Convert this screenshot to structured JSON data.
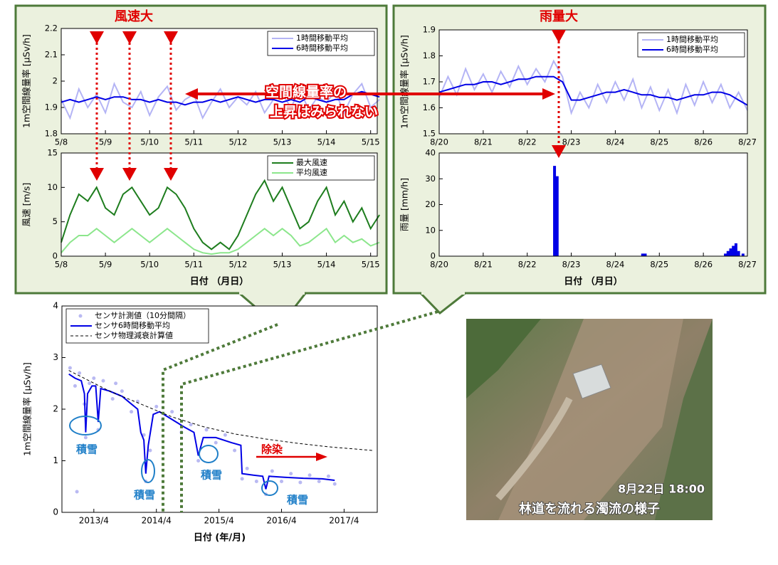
{
  "chart_data": [
    {
      "type": "line",
      "x": [
        0,
        0.2,
        0.4,
        0.6,
        0.8,
        1,
        1.2,
        1.4,
        1.6,
        1.8,
        2,
        2.2,
        2.4,
        2.6,
        2.8,
        3,
        3.2,
        3.4,
        3.6,
        3.8,
        4,
        4.2,
        4.4,
        4.6,
        4.8,
        5,
        5.2,
        5.4,
        5.6,
        5.8,
        6,
        6.2,
        6.4,
        6.6,
        6.8,
        7,
        7.2
      ],
      "series": [
        {
          "name": "1時間移動平均",
          "color": "#b4b4f5",
          "values": [
            1.93,
            1.86,
            1.97,
            1.9,
            1.95,
            1.88,
            1.99,
            1.92,
            1.9,
            1.96,
            1.87,
            1.94,
            1.98,
            1.89,
            1.93,
            1.95,
            1.86,
            1.92,
            1.97,
            1.9,
            1.94,
            1.91,
            1.96,
            1.88,
            1.93,
            1.95,
            1.9,
            1.97,
            1.89,
            1.94,
            1.92,
            1.96,
            1.88,
            1.95,
            1.99,
            1.9,
            1.93
          ]
        },
        {
          "name": "6時間移動平均",
          "color": "#0000e6",
          "values": [
            1.92,
            1.93,
            1.92,
            1.93,
            1.94,
            1.93,
            1.94,
            1.94,
            1.93,
            1.93,
            1.92,
            1.93,
            1.92,
            1.92,
            1.91,
            1.92,
            1.92,
            1.93,
            1.92,
            1.93,
            1.94,
            1.93,
            1.92,
            1.93,
            1.93,
            1.92,
            1.93,
            1.92,
            1.94,
            1.93,
            1.92,
            1.93,
            1.93,
            1.95,
            1.96,
            1.95,
            1.94
          ]
        }
      ],
      "xlim": [
        0,
        7.15
      ],
      "ylim": [
        1.8,
        2.2
      ],
      "yticks": [
        1.8,
        1.9,
        2,
        2.1,
        2.2
      ],
      "xticks": [
        {
          "value": 0,
          "label": "5/8"
        },
        {
          "value": 1,
          "label": "5/9"
        },
        {
          "value": 2,
          "label": "5/10"
        },
        {
          "value": 3,
          "label": "5/11"
        },
        {
          "value": 4,
          "label": "5/12"
        },
        {
          "value": 5,
          "label": "5/13"
        },
        {
          "value": 6,
          "label": "5/14"
        },
        {
          "value": 7,
          "label": "5/15"
        }
      ],
      "ylabel": "1m空間線量率 [μSv/h]",
      "legend": "upper right"
    },
    {
      "type": "line",
      "x": [
        0,
        0.2,
        0.4,
        0.6,
        0.8,
        1,
        1.2,
        1.4,
        1.6,
        1.8,
        2,
        2.2,
        2.4,
        2.6,
        2.8,
        3,
        3.2,
        3.4,
        3.6,
        3.8,
        4,
        4.2,
        4.4,
        4.6,
        4.8,
        5,
        5.2,
        5.4,
        5.6,
        5.8,
        6,
        6.2,
        6.4,
        6.6,
        6.8,
        7,
        7.2
      ],
      "series": [
        {
          "name": "最大風速",
          "color": "#1e7d1e",
          "values": [
            2,
            6,
            9,
            8,
            10,
            7,
            6,
            9,
            10,
            8,
            6,
            7,
            10,
            9,
            7,
            4,
            2,
            1,
            2,
            1,
            3,
            6,
            9,
            11,
            8,
            10,
            7,
            4,
            5,
            8,
            10,
            6,
            8,
            5,
            7,
            4,
            6
          ]
        },
        {
          "name": "平均風速",
          "color": "#8ce68c",
          "values": [
            0.5,
            2,
            3,
            3,
            4,
            3,
            2,
            3,
            4,
            3,
            2,
            3,
            4,
            3,
            2,
            1,
            0.5,
            0.3,
            0.5,
            0.5,
            1,
            2,
            3,
            4,
            3,
            4,
            3,
            1.5,
            2,
            3,
            4,
            2,
            3,
            2,
            2.5,
            1.5,
            2
          ]
        }
      ],
      "xlim": [
        0,
        7.15
      ],
      "ylim": [
        0,
        15
      ],
      "yticks": [
        0,
        5,
        10,
        15
      ],
      "xticks": [
        {
          "value": 0,
          "label": "5/8"
        },
        {
          "value": 1,
          "label": "5/9"
        },
        {
          "value": 2,
          "label": "5/10"
        },
        {
          "value": 3,
          "label": "5/11"
        },
        {
          "value": 4,
          "label": "5/12"
        },
        {
          "value": 5,
          "label": "5/13"
        },
        {
          "value": 6,
          "label": "5/14"
        },
        {
          "value": 7,
          "label": "5/15"
        }
      ],
      "ylabel": "風速 [m/s]",
      "xlabel": "日付 （月日）",
      "legend": "upper right"
    },
    {
      "type": "line",
      "x": [
        0,
        0.2,
        0.4,
        0.6,
        0.8,
        1,
        1.2,
        1.4,
        1.6,
        1.8,
        2,
        2.2,
        2.4,
        2.6,
        2.8,
        3,
        3.2,
        3.4,
        3.6,
        3.8,
        4,
        4.2,
        4.4,
        4.6,
        4.8,
        5,
        5.2,
        5.4,
        5.6,
        5.8,
        6,
        6.2,
        6.4,
        6.6,
        6.8,
        7
      ],
      "series": [
        {
          "name": "1時間移動平均",
          "color": "#b4b4f5",
          "values": [
            1.64,
            1.72,
            1.65,
            1.75,
            1.67,
            1.73,
            1.66,
            1.74,
            1.68,
            1.76,
            1.69,
            1.75,
            1.7,
            1.78,
            1.72,
            1.58,
            1.66,
            1.6,
            1.69,
            1.62,
            1.7,
            1.63,
            1.71,
            1.6,
            1.68,
            1.59,
            1.67,
            1.58,
            1.69,
            1.61,
            1.7,
            1.62,
            1.69,
            1.6,
            1.66,
            1.59
          ]
        },
        {
          "name": "6時間移動平均",
          "color": "#0000e6",
          "values": [
            1.66,
            1.67,
            1.68,
            1.69,
            1.69,
            1.7,
            1.7,
            1.69,
            1.7,
            1.71,
            1.71,
            1.72,
            1.72,
            1.72,
            1.7,
            1.63,
            1.63,
            1.64,
            1.65,
            1.66,
            1.66,
            1.67,
            1.66,
            1.65,
            1.65,
            1.64,
            1.64,
            1.63,
            1.64,
            1.65,
            1.65,
            1.66,
            1.66,
            1.65,
            1.63,
            1.61
          ]
        }
      ],
      "xlim": [
        0,
        7
      ],
      "ylim": [
        1.5,
        1.9
      ],
      "yticks": [
        1.5,
        1.6,
        1.7,
        1.8,
        1.9
      ],
      "xticks": [
        {
          "value": 0,
          "label": "8/20"
        },
        {
          "value": 1,
          "label": "8/21"
        },
        {
          "value": 2,
          "label": "8/22"
        },
        {
          "value": 3,
          "label": "8/23"
        },
        {
          "value": 4,
          "label": "8/24"
        },
        {
          "value": 5,
          "label": "8/25"
        },
        {
          "value": 6,
          "label": "8/26"
        },
        {
          "value": 7,
          "label": "8/27"
        }
      ],
      "ylabel": "1m空間線量率 [μSv/h]",
      "legend": "upper right"
    },
    {
      "type": "bar",
      "x": [
        2.62,
        2.68,
        4.62,
        4.68,
        6.5,
        6.56,
        6.62,
        6.68,
        6.74,
        6.8,
        6.9
      ],
      "values": [
        35,
        31,
        1,
        1,
        1,
        2,
        3,
        4,
        5,
        2,
        1
      ],
      "color": "#0000e6",
      "xlim": [
        0,
        7
      ],
      "ylim": [
        0,
        40
      ],
      "yticks": [
        0,
        10,
        20,
        30,
        40
      ],
      "xticks": [
        {
          "value": 0,
          "label": "8/20"
        },
        {
          "value": 1,
          "label": "8/21"
        },
        {
          "value": 2,
          "label": "8/22"
        },
        {
          "value": 3,
          "label": "8/23"
        },
        {
          "value": 4,
          "label": "8/24"
        },
        {
          "value": 5,
          "label": "8/25"
        },
        {
          "value": 6,
          "label": "8/26"
        },
        {
          "value": 7,
          "label": "8/27"
        }
      ],
      "ylabel": "雨量 [mm/h]",
      "xlabel": "日付 （月日）"
    },
    {
      "type": "line",
      "x": [
        2012.85,
        2012.95,
        2013.05,
        2013.1,
        2013.12,
        2013.15,
        2013.22,
        2013.28,
        2013.32,
        2013.36,
        2013.5,
        2013.7,
        2013.85,
        2013.95,
        2014,
        2014.05,
        2014.08,
        2014.12,
        2014.2,
        2014.3,
        2014.5,
        2014.7,
        2014.85,
        2014.92,
        2015,
        2015.2,
        2015.45,
        2015.6,
        2015.62,
        2015.8,
        2015.95,
        2016,
        2016.05,
        2016.3,
        2016.6,
        2016.9,
        2017.1
      ],
      "series": [
        {
          "name": "センサ計測値（10分間隔）",
          "type": "scatter",
          "color": "#b9b9f2",
          "x": [
            2012.87,
            2012.95,
            2013.02,
            2013.1,
            2013.12,
            2013.18,
            2013.25,
            2013.32,
            2013.4,
            2013.55,
            2013.7,
            2013.85,
            2013.95,
            2014.05,
            2014.08,
            2014.15,
            2014.25,
            2014.35,
            2014.5,
            2014.65,
            2014.8,
            2014.92,
            2015.05,
            2015.2,
            2015.35,
            2015.5,
            2015.62,
            2015.7,
            2015.85,
            2016,
            2016.1,
            2016.25,
            2016.4,
            2016.55,
            2016.7,
            2016.85,
            2017,
            2017.1,
            2012.98,
            2013.6
          ],
          "values": [
            2.8,
            2.45,
            2.7,
            2.1,
            1.45,
            2.5,
            2.6,
            1.6,
            2.55,
            2.2,
            2.35,
            1.95,
            2.15,
            1.5,
            0.6,
            1.2,
            2.05,
            1.8,
            1.95,
            1.55,
            1.7,
            1,
            1.6,
            1.35,
            1.5,
            1.2,
            0.65,
            0.85,
            0.6,
            0.35,
            0.8,
            0.6,
            0.75,
            0.58,
            0.72,
            0.6,
            0.7,
            0.55,
            0.4,
            2.5
          ]
        },
        {
          "name": "センサ6時間移動平均",
          "color": "#0000e6",
          "values": [
            2.68,
            2.6,
            2.55,
            2.3,
            1.55,
            2.3,
            2.45,
            2.45,
            1.75,
            2.4,
            2.35,
            2.25,
            2.1,
            2,
            1.55,
            1.4,
            0.75,
            1.3,
            1.9,
            1.95,
            1.8,
            1.65,
            1.55,
            1.1,
            1.45,
            1.45,
            1.35,
            1.3,
            0.75,
            0.72,
            0.7,
            0.45,
            0.7,
            0.68,
            0.66,
            0.65,
            0.62
          ]
        },
        {
          "name": "センサ物理減衰計算値",
          "color": "#000000",
          "line_style": "dashed",
          "x": [
            2012.85,
            2013.5,
            2014,
            2014.5,
            2015,
            2015.5,
            2016,
            2016.5,
            2017,
            2017.7
          ],
          "values": [
            2.75,
            2.35,
            2.1,
            1.85,
            1.66,
            1.52,
            1.42,
            1.34,
            1.27,
            1.2
          ]
        }
      ],
      "xlim": [
        2012.74,
        2017.78
      ],
      "ylim": [
        0,
        4
      ],
      "yticks": [
        0,
        1,
        2,
        3,
        4
      ],
      "xticks": [
        {
          "value": 2013.25,
          "label": "2013/4"
        },
        {
          "value": 2014.25,
          "label": "2014/4"
        },
        {
          "value": 2015.25,
          "label": "2015/4"
        },
        {
          "value": 2016.25,
          "label": "2016/4"
        },
        {
          "value": 2017.25,
          "label": "2017/4"
        }
      ],
      "ylabel": "1m空間線量率 [μSv/h]",
      "xlabel": "日付 (年/月)",
      "legend": "upper left"
    }
  ],
  "annotations": {
    "wind_high": "風速大",
    "rain_high": "雨量大",
    "no_rise": [
      "空間線量率の",
      "上昇はみられない"
    ],
    "snow": [
      "積雪",
      "積雪",
      "積雪",
      "積雪"
    ],
    "decon": "除染"
  },
  "photo": {
    "caption_time": "8月22日 18:00",
    "caption": "林道を流れる濁流の様子"
  }
}
